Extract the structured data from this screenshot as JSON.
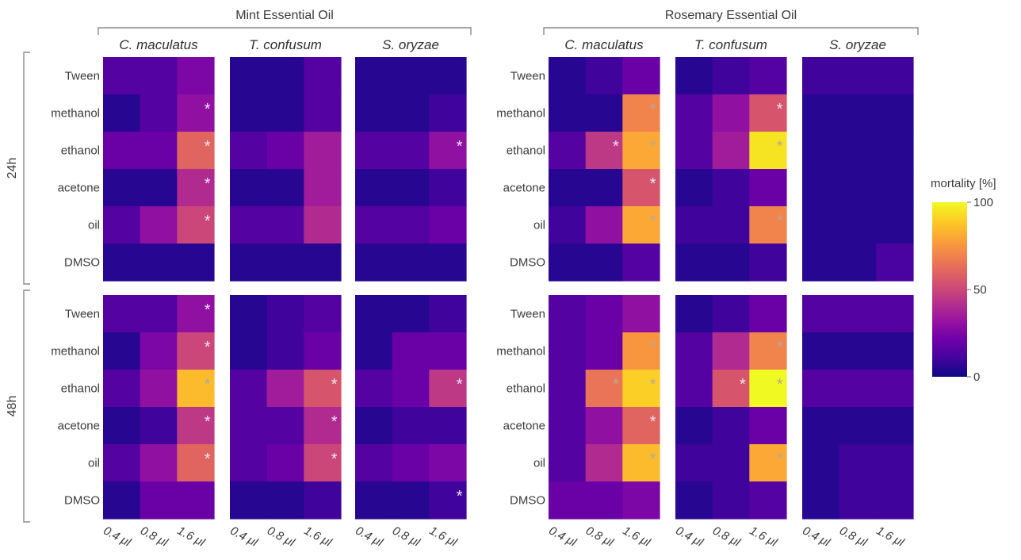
{
  "chart_data": {
    "type": "heatmap",
    "title": "",
    "groups": [
      "Mint Essential Oil",
      "Rosemary Essential Oil"
    ],
    "species": [
      "C. maculatus",
      "T. confusum",
      "S. oryzae"
    ],
    "timepoints": [
      "24h",
      "48h"
    ],
    "rows": [
      "Tween",
      "methanol",
      "ethanol",
      "acetone",
      "oil",
      "DMSO"
    ],
    "doses": [
      "0.4 μl",
      "0.8 μl",
      "1.6 μl"
    ],
    "colorbar": {
      "title": "mortality [%]",
      "range": [
        0,
        100
      ],
      "ticks": [
        0,
        50,
        100
      ],
      "colors": [
        "#0d0887",
        "#46039f",
        "#7201a8",
        "#9c179e",
        "#bd3786",
        "#d8576b",
        "#ed7953",
        "#fb9f3a",
        "#fdca26",
        "#f0f921"
      ]
    },
    "panels": [
      {
        "group": "Mint Essential Oil",
        "time": "24h",
        "species": "C. maculatus",
        "values": [
          [
            15,
            15,
            25
          ],
          [
            5,
            15,
            30
          ],
          [
            20,
            20,
            60
          ],
          [
            5,
            5,
            40
          ],
          [
            15,
            30,
            50
          ],
          [
            5,
            5,
            5
          ]
        ],
        "significant": [
          [
            0,
            0,
            0
          ],
          [
            0,
            0,
            1
          ],
          [
            0,
            0,
            1
          ],
          [
            0,
            0,
            1
          ],
          [
            0,
            0,
            1
          ],
          [
            0,
            0,
            0
          ]
        ]
      },
      {
        "group": "Mint Essential Oil",
        "time": "24h",
        "species": "T. confusum",
        "values": [
          [
            5,
            5,
            15
          ],
          [
            5,
            5,
            15
          ],
          [
            15,
            20,
            35
          ],
          [
            5,
            5,
            35
          ],
          [
            15,
            15,
            40
          ],
          [
            5,
            5,
            5
          ]
        ],
        "significant": [
          [
            0,
            0,
            0
          ],
          [
            0,
            0,
            0
          ],
          [
            0,
            0,
            0
          ],
          [
            0,
            0,
            0
          ],
          [
            0,
            0,
            0
          ],
          [
            0,
            0,
            0
          ]
        ]
      },
      {
        "group": "Mint Essential Oil",
        "time": "24h",
        "species": "S. oryzae",
        "values": [
          [
            5,
            5,
            5
          ],
          [
            5,
            5,
            10
          ],
          [
            15,
            15,
            30
          ],
          [
            5,
            5,
            10
          ],
          [
            15,
            15,
            20
          ],
          [
            5,
            5,
            5
          ]
        ],
        "significant": [
          [
            0,
            0,
            0
          ],
          [
            0,
            0,
            0
          ],
          [
            0,
            0,
            1
          ],
          [
            0,
            0,
            0
          ],
          [
            0,
            0,
            0
          ],
          [
            0,
            0,
            0
          ]
        ]
      },
      {
        "group": "Rosemary Essential Oil",
        "time": "24h",
        "species": "C. maculatus",
        "values": [
          [
            5,
            10,
            20
          ],
          [
            5,
            5,
            70
          ],
          [
            15,
            45,
            80
          ],
          [
            5,
            5,
            55
          ],
          [
            10,
            30,
            80
          ],
          [
            5,
            5,
            15
          ]
        ],
        "significant": [
          [
            0,
            0,
            0
          ],
          [
            0,
            0,
            1
          ],
          [
            0,
            1,
            1
          ],
          [
            0,
            0,
            1
          ],
          [
            0,
            0,
            1
          ],
          [
            0,
            0,
            0
          ]
        ]
      },
      {
        "group": "Rosemary Essential Oil",
        "time": "24h",
        "species": "T. confusum",
        "values": [
          [
            5,
            10,
            15
          ],
          [
            15,
            30,
            55
          ],
          [
            15,
            35,
            95
          ],
          [
            5,
            10,
            20
          ],
          [
            10,
            10,
            70
          ],
          [
            5,
            5,
            10
          ]
        ],
        "significant": [
          [
            0,
            0,
            0
          ],
          [
            0,
            0,
            1
          ],
          [
            0,
            0,
            1
          ],
          [
            0,
            0,
            0
          ],
          [
            0,
            0,
            1
          ],
          [
            0,
            0,
            0
          ]
        ]
      },
      {
        "group": "Rosemary Essential Oil",
        "time": "24h",
        "species": "S. oryzae",
        "values": [
          [
            10,
            10,
            10
          ],
          [
            5,
            5,
            5
          ],
          [
            5,
            5,
            5
          ],
          [
            5,
            5,
            5
          ],
          [
            5,
            5,
            5
          ],
          [
            5,
            5,
            12
          ]
        ],
        "significant": [
          [
            0,
            0,
            0
          ],
          [
            0,
            0,
            0
          ],
          [
            0,
            0,
            0
          ],
          [
            0,
            0,
            0
          ],
          [
            0,
            0,
            0
          ],
          [
            0,
            0,
            0
          ]
        ]
      },
      {
        "group": "Mint Essential Oil",
        "time": "48h",
        "species": "C. maculatus",
        "values": [
          [
            15,
            15,
            30
          ],
          [
            5,
            25,
            50
          ],
          [
            15,
            30,
            85
          ],
          [
            5,
            10,
            45
          ],
          [
            15,
            30,
            60
          ],
          [
            5,
            20,
            20
          ]
        ],
        "significant": [
          [
            0,
            0,
            1
          ],
          [
            0,
            0,
            1
          ],
          [
            0,
            0,
            1
          ],
          [
            0,
            0,
            1
          ],
          [
            0,
            0,
            1
          ],
          [
            0,
            0,
            0
          ]
        ]
      },
      {
        "group": "Mint Essential Oil",
        "time": "48h",
        "species": "T. confusum",
        "values": [
          [
            5,
            10,
            15
          ],
          [
            5,
            10,
            20
          ],
          [
            15,
            35,
            55
          ],
          [
            15,
            15,
            40
          ],
          [
            15,
            20,
            50
          ],
          [
            5,
            5,
            10
          ]
        ],
        "significant": [
          [
            0,
            0,
            0
          ],
          [
            0,
            0,
            0
          ],
          [
            0,
            0,
            1
          ],
          [
            0,
            0,
            1
          ],
          [
            0,
            0,
            1
          ],
          [
            0,
            0,
            0
          ]
        ]
      },
      {
        "group": "Mint Essential Oil",
        "time": "48h",
        "species": "S. oryzae",
        "values": [
          [
            5,
            5,
            10
          ],
          [
            5,
            20,
            20
          ],
          [
            15,
            20,
            45
          ],
          [
            5,
            10,
            10
          ],
          [
            15,
            20,
            25
          ],
          [
            5,
            5,
            10
          ]
        ],
        "significant": [
          [
            0,
            0,
            0
          ],
          [
            0,
            0,
            0
          ],
          [
            0,
            0,
            1
          ],
          [
            0,
            0,
            0
          ],
          [
            0,
            0,
            0
          ],
          [
            0,
            0,
            1
          ]
        ]
      },
      {
        "group": "Rosemary Essential Oil",
        "time": "48h",
        "species": "C. maculatus",
        "values": [
          [
            15,
            20,
            30
          ],
          [
            15,
            20,
            75
          ],
          [
            15,
            65,
            90
          ],
          [
            15,
            30,
            60
          ],
          [
            15,
            40,
            85
          ],
          [
            20,
            20,
            25
          ]
        ],
        "significant": [
          [
            0,
            0,
            0
          ],
          [
            0,
            0,
            1
          ],
          [
            0,
            1,
            1
          ],
          [
            0,
            0,
            1
          ],
          [
            0,
            0,
            1
          ],
          [
            0,
            0,
            0
          ]
        ]
      },
      {
        "group": "Rosemary Essential Oil",
        "time": "48h",
        "species": "T. confusum",
        "values": [
          [
            5,
            10,
            20
          ],
          [
            15,
            40,
            70
          ],
          [
            15,
            55,
            100
          ],
          [
            5,
            10,
            20
          ],
          [
            10,
            10,
            80
          ],
          [
            5,
            10,
            15
          ]
        ],
        "significant": [
          [
            0,
            0,
            0
          ],
          [
            0,
            0,
            1
          ],
          [
            0,
            1,
            1
          ],
          [
            0,
            0,
            0
          ],
          [
            0,
            0,
            1
          ],
          [
            0,
            0,
            0
          ]
        ]
      },
      {
        "group": "Rosemary Essential Oil",
        "time": "48h",
        "species": "S. oryzae",
        "values": [
          [
            15,
            15,
            15
          ],
          [
            5,
            5,
            5
          ],
          [
            15,
            15,
            15
          ],
          [
            5,
            5,
            5
          ],
          [
            5,
            10,
            10
          ],
          [
            5,
            10,
            10
          ]
        ],
        "significant": [
          [
            0,
            0,
            0
          ],
          [
            0,
            0,
            0
          ],
          [
            0,
            0,
            0
          ],
          [
            0,
            0,
            0
          ],
          [
            0,
            0,
            0
          ],
          [
            0,
            0,
            0
          ]
        ]
      }
    ]
  }
}
